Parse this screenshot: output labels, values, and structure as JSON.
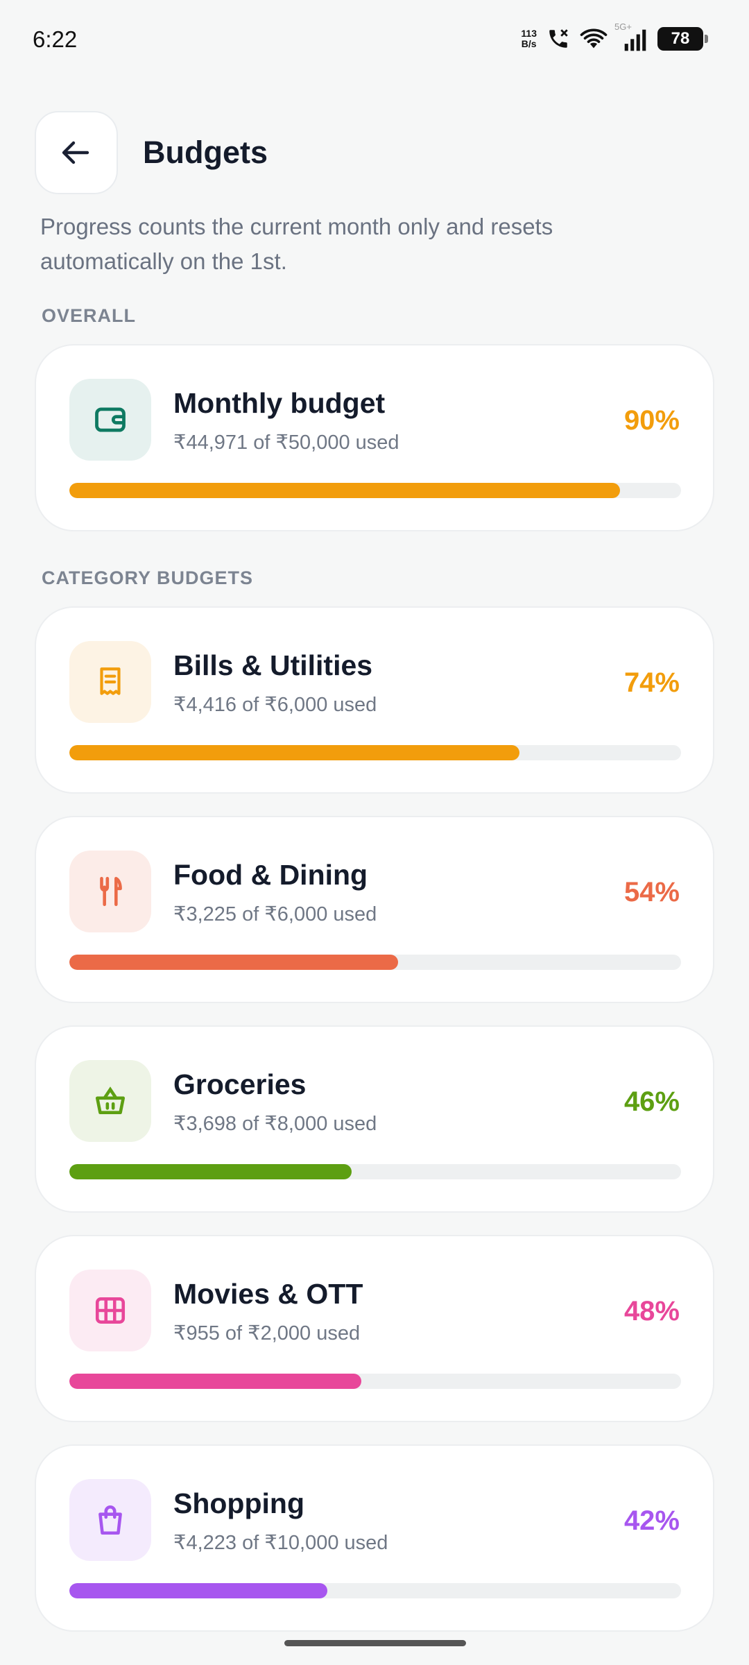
{
  "status_bar": {
    "time": "6:22",
    "net_speed_value": "113",
    "net_speed_unit": "B/s",
    "network_type": "5G+",
    "battery": "78"
  },
  "header": {
    "title": "Budgets"
  },
  "subtitle": "Progress counts the current month only and resets automatically on the 1st.",
  "overall": {
    "section_label": "OVERALL",
    "name": "Monthly budget",
    "usage": "₹44,971 of ₹50,000 used",
    "percent": "90%",
    "progress": 0.9,
    "icon": "wallet-icon",
    "color": "#f29d0c",
    "icon_bg": "#e6f1ef",
    "icon_color": "#0e7a62"
  },
  "categories_section_label": "CATEGORY BUDGETS",
  "categories": [
    {
      "name": "Bills & Utilities",
      "usage": "₹4,416 of ₹6,000 used",
      "percent": "74%",
      "progress": 0.736,
      "icon": "receipt-icon",
      "color": "#f29d0c",
      "icon_bg": "#fdf3e4"
    },
    {
      "name": "Food & Dining",
      "usage": "₹3,225 of ₹6,000 used",
      "percent": "54%",
      "progress": 0.5375,
      "icon": "utensils-icon",
      "color": "#eb6a47",
      "icon_bg": "#fcece8"
    },
    {
      "name": "Groceries",
      "usage": "₹3,698 of ₹8,000 used",
      "percent": "46%",
      "progress": 0.462,
      "icon": "basket-icon",
      "color": "#5d9f12",
      "icon_bg": "#eef4e6"
    },
    {
      "name": "Movies & OTT",
      "usage": "₹955 of ₹2,000 used",
      "percent": "48%",
      "progress": 0.4775,
      "icon": "film-icon",
      "color": "#e8479a",
      "icon_bg": "#fcebf3"
    },
    {
      "name": "Shopping",
      "usage": "₹4,223 of ₹10,000 used",
      "percent": "42%",
      "progress": 0.4223,
      "icon": "shopping-bag-icon",
      "color": "#a756ef",
      "icon_bg": "#f4ebfd"
    }
  ]
}
